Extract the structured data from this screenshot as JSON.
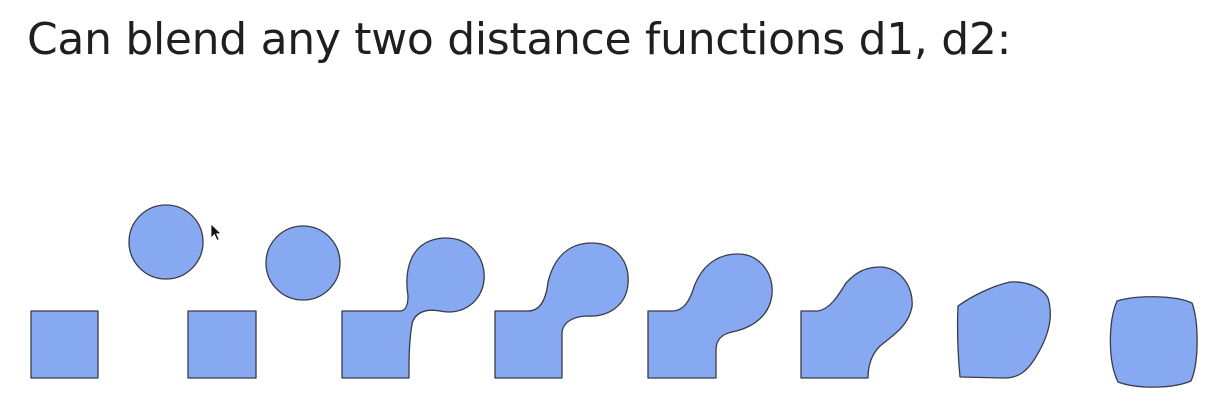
{
  "slide": {
    "title": "Can blend any two distance functions d1, d2:"
  },
  "figure": {
    "shape_fill_color": "#86a9f2",
    "shape_stroke_color": "#3b3b45",
    "frames": [
      {
        "id": "separate"
      },
      {
        "id": "separate-closer"
      },
      {
        "id": "blend-1"
      },
      {
        "id": "blend-2"
      },
      {
        "id": "blend-3"
      },
      {
        "id": "blend-4"
      },
      {
        "id": "blend-5"
      },
      {
        "id": "blend-6"
      }
    ]
  },
  "cursor": {
    "icon": "arrow-pointer-icon"
  }
}
